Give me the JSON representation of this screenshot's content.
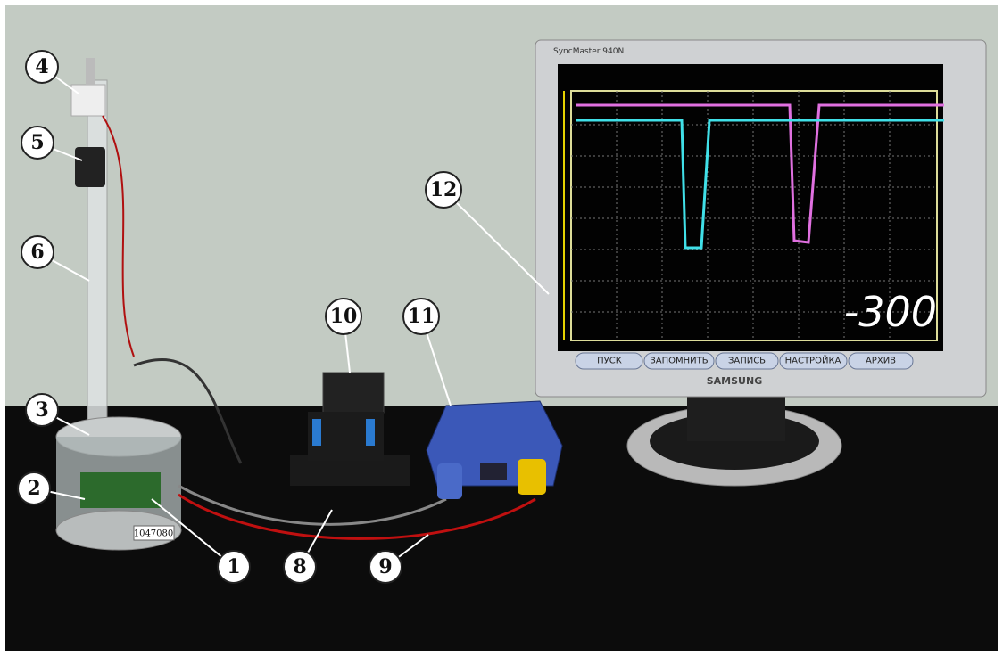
{
  "callouts": [
    "4",
    "5",
    "6",
    "3",
    "2",
    "1",
    "8",
    "9",
    "10",
    "11",
    "12"
  ],
  "monitor": {
    "model": "SyncMaster 940N",
    "brand": "SAMSUNG",
    "readout": "-300",
    "buttons": [
      "ПУСК",
      "ЗАПОМНИТЬ",
      "ЗАПИСЬ",
      "НАСТРОЙКА",
      "АРХИВ"
    ]
  },
  "sensor_label": "1047080"
}
